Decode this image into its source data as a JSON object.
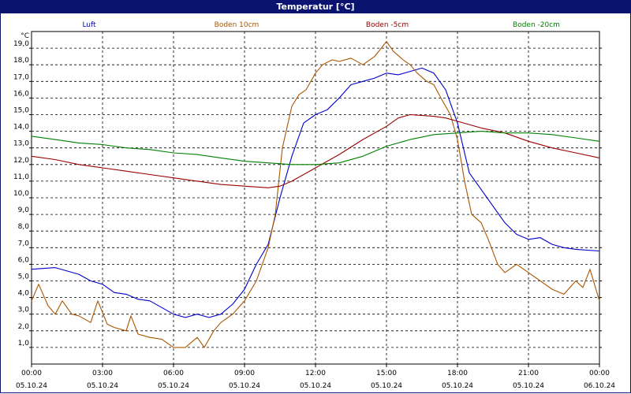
{
  "window": {
    "title": "Temperatur [°C]"
  },
  "chart_data": {
    "type": "line",
    "title": "Temperatur [°C]",
    "ylabel": "°C",
    "xlabel": "",
    "ylim": [
      0,
      20
    ],
    "xlim_hours": [
      0,
      24
    ],
    "grid": true,
    "y_ticks": [
      "1,0",
      "2,0",
      "3,0",
      "4,0",
      "5,0",
      "6,0",
      "7,0",
      "8,0",
      "9,0",
      "10,0",
      "11,0",
      "12,0",
      "13,0",
      "14,0",
      "15,0",
      "16,0",
      "17,0",
      "18,0",
      "19,0"
    ],
    "x_ticks": [
      {
        "time": "00:00",
        "date": "05.10.24"
      },
      {
        "time": "03:00",
        "date": "05.10.24"
      },
      {
        "time": "06:00",
        "date": "05.10.24"
      },
      {
        "time": "09:00",
        "date": "05.10.24"
      },
      {
        "time": "12:00",
        "date": "05.10.24"
      },
      {
        "time": "15:00",
        "date": "05.10.24"
      },
      {
        "time": "18:00",
        "date": "05.10.24"
      },
      {
        "time": "21:00",
        "date": "05.10.24"
      },
      {
        "time": "00:00",
        "date": "06.10.24"
      }
    ],
    "series": [
      {
        "name": "Luft",
        "color": "#0000cc",
        "points": [
          [
            0,
            5.7
          ],
          [
            1,
            5.8
          ],
          [
            2,
            5.4
          ],
          [
            2.5,
            5.0
          ],
          [
            3,
            4.8
          ],
          [
            3.5,
            4.3
          ],
          [
            4,
            4.2
          ],
          [
            4.5,
            3.9
          ],
          [
            5,
            3.8
          ],
          [
            6,
            3.0
          ],
          [
            6.5,
            2.8
          ],
          [
            7,
            3.0
          ],
          [
            7.5,
            2.8
          ],
          [
            8,
            3.0
          ],
          [
            8.5,
            3.6
          ],
          [
            9,
            4.5
          ],
          [
            9.5,
            6.0
          ],
          [
            10,
            7.2
          ],
          [
            10.5,
            10.0
          ],
          [
            11,
            12.5
          ],
          [
            11.5,
            14.5
          ],
          [
            12,
            15.0
          ],
          [
            12.5,
            15.3
          ],
          [
            13,
            16.0
          ],
          [
            13.5,
            16.8
          ],
          [
            14,
            17.0
          ],
          [
            14.5,
            17.2
          ],
          [
            15,
            17.5
          ],
          [
            15.5,
            17.4
          ],
          [
            16,
            17.6
          ],
          [
            16.5,
            17.8
          ],
          [
            17,
            17.5
          ],
          [
            17.5,
            16.5
          ],
          [
            18,
            14.5
          ],
          [
            18.5,
            11.5
          ],
          [
            19,
            10.5
          ],
          [
            19.5,
            9.5
          ],
          [
            20,
            8.5
          ],
          [
            20.5,
            7.8
          ],
          [
            21,
            7.5
          ],
          [
            21.5,
            7.6
          ],
          [
            22,
            7.2
          ],
          [
            22.5,
            7.0
          ],
          [
            23,
            6.9
          ],
          [
            24,
            6.8
          ]
        ]
      },
      {
        "name": "Boden 10cm",
        "color": "#aa5500",
        "points": [
          [
            0,
            3.8
          ],
          [
            0.3,
            4.8
          ],
          [
            0.7,
            3.5
          ],
          [
            1,
            3.0
          ],
          [
            1.3,
            3.8
          ],
          [
            1.7,
            3.0
          ],
          [
            2,
            2.9
          ],
          [
            2.5,
            2.5
          ],
          [
            2.8,
            3.8
          ],
          [
            3.2,
            2.4
          ],
          [
            3.5,
            2.2
          ],
          [
            4,
            2.0
          ],
          [
            4.2,
            2.9
          ],
          [
            4.5,
            1.8
          ],
          [
            5,
            1.6
          ],
          [
            5.5,
            1.5
          ],
          [
            6,
            1.0
          ],
          [
            6.5,
            1.0
          ],
          [
            7,
            1.6
          ],
          [
            7.3,
            1.0
          ],
          [
            7.7,
            2.0
          ],
          [
            8,
            2.5
          ],
          [
            8.5,
            3.0
          ],
          [
            9,
            3.8
          ],
          [
            9.5,
            5.0
          ],
          [
            10,
            7.0
          ],
          [
            10.3,
            9.0
          ],
          [
            10.6,
            13.0
          ],
          [
            11,
            15.5
          ],
          [
            11.3,
            16.2
          ],
          [
            11.6,
            16.5
          ],
          [
            12,
            17.5
          ],
          [
            12.3,
            18.0
          ],
          [
            12.7,
            18.3
          ],
          [
            13,
            18.2
          ],
          [
            13.5,
            18.4
          ],
          [
            14,
            18.0
          ],
          [
            14.5,
            18.5
          ],
          [
            15,
            19.4
          ],
          [
            15.3,
            18.8
          ],
          [
            15.7,
            18.3
          ],
          [
            16,
            18.0
          ],
          [
            16.3,
            17.5
          ],
          [
            16.7,
            17.0
          ],
          [
            17,
            16.8
          ],
          [
            17.3,
            16.0
          ],
          [
            17.7,
            15.0
          ],
          [
            18,
            13.5
          ],
          [
            18.3,
            11.0
          ],
          [
            18.6,
            9.0
          ],
          [
            19,
            8.5
          ],
          [
            19.3,
            7.5
          ],
          [
            19.7,
            6.0
          ],
          [
            20,
            5.5
          ],
          [
            20.5,
            6.0
          ],
          [
            21,
            5.5
          ],
          [
            21.5,
            5.0
          ],
          [
            22,
            4.5
          ],
          [
            22.5,
            4.2
          ],
          [
            23,
            5.0
          ],
          [
            23.3,
            4.6
          ],
          [
            23.6,
            5.7
          ],
          [
            24,
            3.8
          ]
        ]
      },
      {
        "name": "Boden -5cm",
        "color": "#990000",
        "points": [
          [
            0,
            12.5
          ],
          [
            1,
            12.3
          ],
          [
            2,
            12.0
          ],
          [
            3,
            11.8
          ],
          [
            4,
            11.6
          ],
          [
            5,
            11.4
          ],
          [
            6,
            11.2
          ],
          [
            7,
            11.0
          ],
          [
            8,
            10.8
          ],
          [
            9,
            10.7
          ],
          [
            10,
            10.6
          ],
          [
            10.5,
            10.7
          ],
          [
            11,
            11.0
          ],
          [
            12,
            11.8
          ],
          [
            13,
            12.6
          ],
          [
            14,
            13.5
          ],
          [
            15,
            14.3
          ],
          [
            15.5,
            14.8
          ],
          [
            16,
            15.0
          ],
          [
            17,
            14.9
          ],
          [
            17.5,
            14.8
          ],
          [
            18,
            14.6
          ],
          [
            19,
            14.2
          ],
          [
            20,
            13.9
          ],
          [
            21,
            13.4
          ],
          [
            22,
            13.0
          ],
          [
            23,
            12.7
          ],
          [
            24,
            12.4
          ]
        ]
      },
      {
        "name": "Boden -20cm",
        "color": "#008000",
        "points": [
          [
            0,
            13.7
          ],
          [
            1,
            13.5
          ],
          [
            2,
            13.3
          ],
          [
            3,
            13.2
          ],
          [
            4,
            13.0
          ],
          [
            5,
            12.9
          ],
          [
            6,
            12.7
          ],
          [
            7,
            12.6
          ],
          [
            8,
            12.4
          ],
          [
            9,
            12.2
          ],
          [
            10,
            12.1
          ],
          [
            11,
            12.0
          ],
          [
            12,
            12.0
          ],
          [
            13,
            12.1
          ],
          [
            14,
            12.5
          ],
          [
            15,
            13.1
          ],
          [
            16,
            13.5
          ],
          [
            17,
            13.8
          ],
          [
            18,
            13.9
          ],
          [
            19,
            14.0
          ],
          [
            20,
            13.9
          ],
          [
            21,
            13.9
          ],
          [
            22,
            13.8
          ],
          [
            23,
            13.6
          ],
          [
            24,
            13.4
          ]
        ]
      }
    ]
  }
}
